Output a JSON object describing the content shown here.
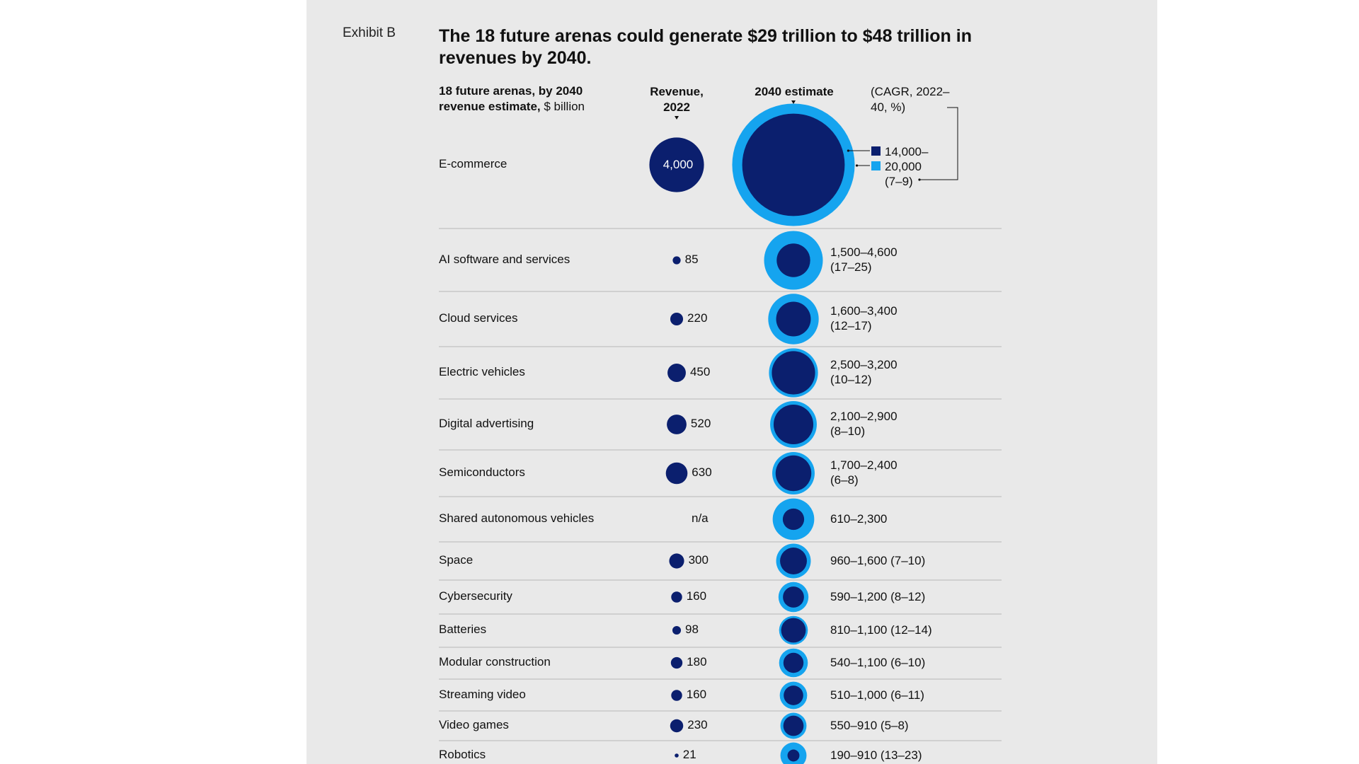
{
  "exhibit_label": "Exhibit B",
  "title": "The 18 future arenas could generate $29 trillion to $48 trillion in revenues by 2040.",
  "headers": {
    "arenas_bold": "18 future arenas, by 2040 revenue estimate,",
    "arenas_unit": " $ billion",
    "revenue_2022": "Revenue, 2022",
    "estimate_2040": "2040 estimate",
    "cagr": "(CAGR, 2022–40, %)"
  },
  "colors": {
    "dark_navy": "#0b1f6e",
    "light_blue": "#15a4ef",
    "divider": "#b8b8b8",
    "panel": "#e9e9e9"
  },
  "chart_data": {
    "type": "bubble",
    "categories": [
      "E-commerce",
      "AI software and services",
      "Cloud services",
      "Electric vehicles",
      "Digital advertising",
      "Semiconductors",
      "Shared autonomous vehicles",
      "Space",
      "Cybersecurity",
      "Batteries",
      "Modular construction",
      "Streaming video",
      "Video games",
      "Robotics"
    ],
    "revenue_2022": [
      4000,
      85,
      220,
      450,
      520,
      630,
      null,
      300,
      160,
      98,
      180,
      160,
      230,
      21
    ],
    "revenue_2022_labels": [
      "4,000",
      "85",
      "220",
      "450",
      "520",
      "630",
      "n/a",
      "300",
      "160",
      "98",
      "180",
      "160",
      "230",
      "21"
    ],
    "estimate_2040_low": [
      14000,
      1500,
      1600,
      2500,
      2100,
      1700,
      610,
      960,
      590,
      810,
      540,
      510,
      550,
      190
    ],
    "estimate_2040_high": [
      20000,
      4600,
      3400,
      3200,
      2900,
      2400,
      2300,
      1600,
      1200,
      1100,
      1100,
      1000,
      910,
      910
    ],
    "estimate_labels": [
      "14,000–\n20,000\n(7–9)",
      "1,500–4,600\n(17–25)",
      "1,600–3,400\n(12–17)",
      "2,500–3,200\n(10–12)",
      "2,100–2,900\n(8–10)",
      "1,700–2,400\n(6–8)",
      "610–2,300",
      "960–1,600 (7–10)",
      "590–1,200 (8–12)",
      "810–1,100 (12–14)",
      "540–1,100 (6–10)",
      "510–1,000 (6–11)",
      "550–910 (5–8)",
      "190–910 (13–23)"
    ],
    "ecommerce_estimate_lines": [
      "14,000–",
      "20,000",
      "(7–9)"
    ],
    "legend": {
      "low": "dark navy square = low estimate",
      "high": "light blue square = high estimate"
    }
  }
}
